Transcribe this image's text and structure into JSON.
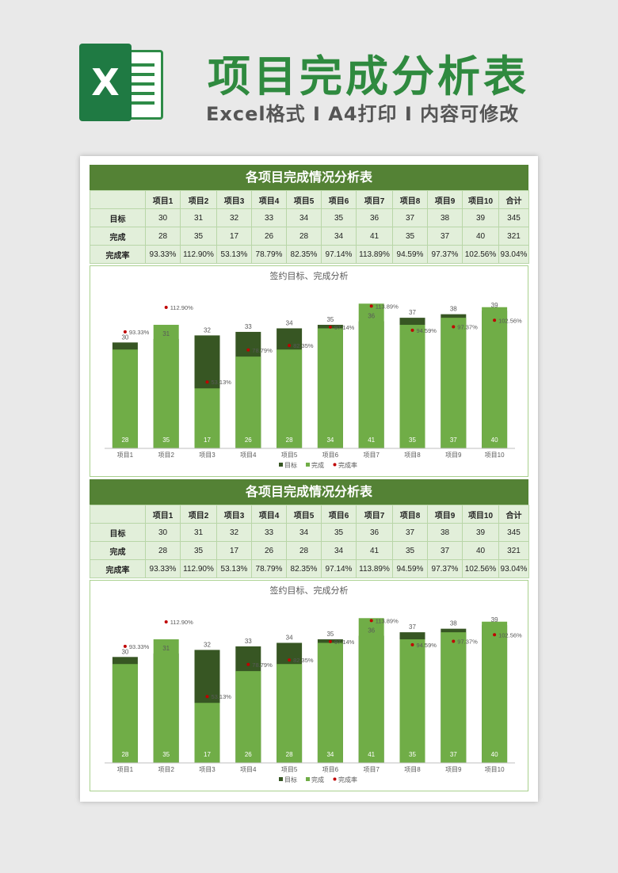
{
  "header": {
    "logo_letter": "X",
    "title": "项目完成分析表",
    "subtitle": "Excel格式 I A4打印 I 内容可修改"
  },
  "sections": [
    {
      "title": "各项目完成情况分析表",
      "chart_title": "签约目标、完成分析"
    },
    {
      "title": "各项目完成情况分析表",
      "chart_title": "签约目标、完成分析"
    }
  ],
  "table": {
    "columns": [
      "",
      "项目1",
      "项目2",
      "项目3",
      "项目4",
      "项目5",
      "项目6",
      "项目7",
      "项目8",
      "项目9",
      "项目10",
      "合计"
    ],
    "rows": [
      {
        "label": "目标",
        "values": [
          "30",
          "31",
          "32",
          "33",
          "34",
          "35",
          "36",
          "37",
          "38",
          "39",
          "345"
        ]
      },
      {
        "label": "完成",
        "values": [
          "28",
          "35",
          "17",
          "26",
          "28",
          "34",
          "41",
          "35",
          "37",
          "40",
          "321"
        ]
      },
      {
        "label": "完成率",
        "values": [
          "93.33%",
          "112.90%",
          "53.13%",
          "78.79%",
          "82.35%",
          "97.14%",
          "113.89%",
          "94.59%",
          "97.37%",
          "102.56%",
          "93.04%"
        ]
      }
    ]
  },
  "chart_data": [
    {
      "type": "bar",
      "title": "签约目标、完成分析",
      "categories": [
        "项目1",
        "项目2",
        "项目3",
        "项目4",
        "项目5",
        "项目6",
        "项目7",
        "项目8",
        "项目9",
        "项目10"
      ],
      "series": [
        {
          "name": "目标",
          "values": [
            30,
            31,
            32,
            33,
            34,
            35,
            36,
            37,
            38,
            39
          ],
          "color": "#375623"
        },
        {
          "name": "完成",
          "values": [
            28,
            35,
            17,
            26,
            28,
            34,
            41,
            35,
            37,
            40
          ],
          "color": "#70ad47"
        },
        {
          "name": "完成率",
          "type": "scatter",
          "values": [
            93.33,
            112.9,
            53.13,
            78.79,
            82.35,
            97.14,
            113.89,
            94.59,
            97.37,
            102.56
          ],
          "labels": [
            "93.33%",
            "112.90%",
            "53.13%",
            "78.79%",
            "82.35%",
            "97.14%",
            "113.89%",
            "94.59%",
            "97.37%",
            "102.56%"
          ],
          "color": "#c00000"
        }
      ],
      "ylim": [
        0,
        46
      ],
      "y2lim": [
        0,
        130
      ],
      "legend": "bottom",
      "grid": false
    },
    {
      "type": "bar",
      "title": "签约目标、完成分析",
      "categories": [
        "项目1",
        "项目2",
        "项目3",
        "项目4",
        "项目5",
        "项目6",
        "项目7",
        "项目8",
        "项目9",
        "项目10"
      ],
      "series": [
        {
          "name": "目标",
          "values": [
            30,
            31,
            32,
            33,
            34,
            35,
            36,
            37,
            38,
            39
          ],
          "color": "#375623"
        },
        {
          "name": "完成",
          "values": [
            28,
            35,
            17,
            26,
            28,
            34,
            41,
            35,
            37,
            40
          ],
          "color": "#70ad47"
        },
        {
          "name": "完成率",
          "type": "scatter",
          "values": [
            93.33,
            112.9,
            53.13,
            78.79,
            82.35,
            97.14,
            113.89,
            94.59,
            97.37,
            102.56
          ],
          "labels": [
            "93.33%",
            "112.90%",
            "53.13%",
            "78.79%",
            "82.35%",
            "97.14%",
            "113.89%",
            "94.59%",
            "97.37%",
            "102.56%"
          ],
          "color": "#c00000"
        }
      ],
      "ylim": [
        0,
        46
      ],
      "y2lim": [
        0,
        130
      ],
      "legend": "bottom",
      "grid": false
    }
  ]
}
